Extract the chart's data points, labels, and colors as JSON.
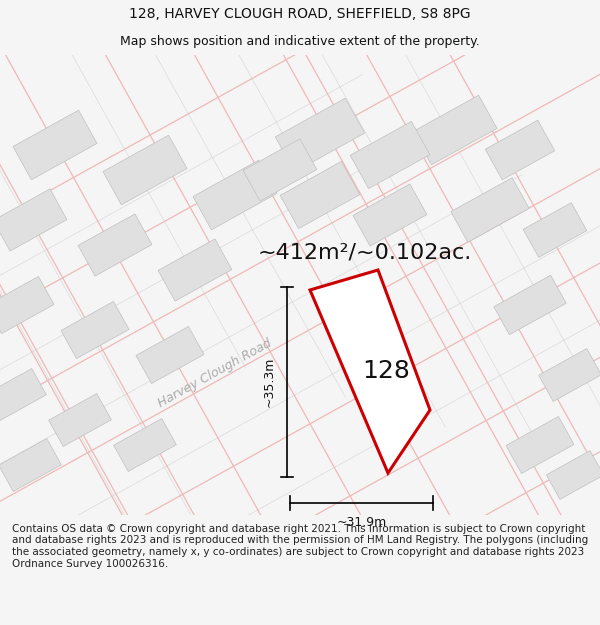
{
  "title_line1": "128, HARVEY CLOUGH ROAD, SHEFFIELD, S8 8PG",
  "title_line2": "Map shows position and indicative extent of the property.",
  "area_label": "~412m²/~0.102ac.",
  "number_label": "128",
  "road_label": "Harvey Clough Road",
  "dim_height": "~35.3m",
  "dim_width": "~31.9m",
  "footer_text": "Contains OS data © Crown copyright and database right 2021. This information is subject to Crown copyright and database rights 2023 and is reproduced with the permission of HM Land Registry. The polygons (including the associated geometry, namely x, y co-ordinates) are subject to Crown copyright and database rights 2023 Ordnance Survey 100026316.",
  "map_bg": "#ffffff",
  "page_bg": "#f5f5f5",
  "property_color": "#cc0000",
  "property_fill": "#ffffff",
  "road_line_color": "#f0b8b8",
  "road_line_color2": "#c8c8c8",
  "building_fill": "#e0e0e0",
  "building_edge": "#c0c0c0",
  "title_fontsize": 10,
  "subtitle_fontsize": 9,
  "footer_fontsize": 7.5,
  "dim_fontsize": 9,
  "area_fontsize": 16,
  "number_fontsize": 18,
  "road_label_fontsize": 9
}
